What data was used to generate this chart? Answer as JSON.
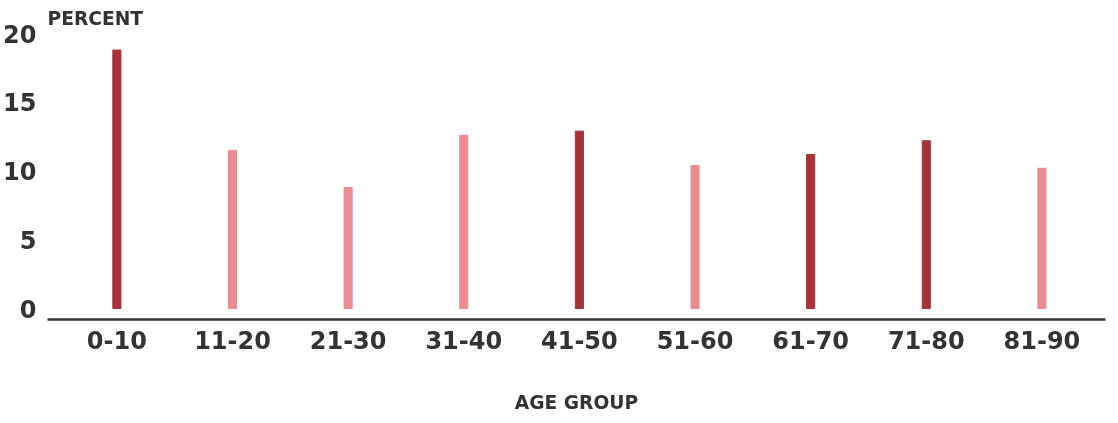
{
  "chart_data": {
    "type": "bar",
    "ylabel": "PERCENT",
    "xlabel": "AGE GROUP",
    "categories": [
      "0-10",
      "11-20",
      "21-30",
      "31-40",
      "41-50",
      "51-60",
      "61-70",
      "71-80",
      "81-90"
    ],
    "values": [
      18.8,
      11.5,
      8.8,
      12.6,
      12.9,
      10.4,
      11.2,
      12.2,
      10.2
    ],
    "colors": [
      "#a8323a",
      "#ea8c92",
      "#ea8c92",
      "#ea8c92",
      "#a8323a",
      "#ea8c92",
      "#a8323a",
      "#a8323a",
      "#ea8c92"
    ],
    "ylim": [
      -0.8,
      20
    ],
    "yticks": [
      0,
      5,
      10,
      15,
      20
    ],
    "grid": false
  }
}
